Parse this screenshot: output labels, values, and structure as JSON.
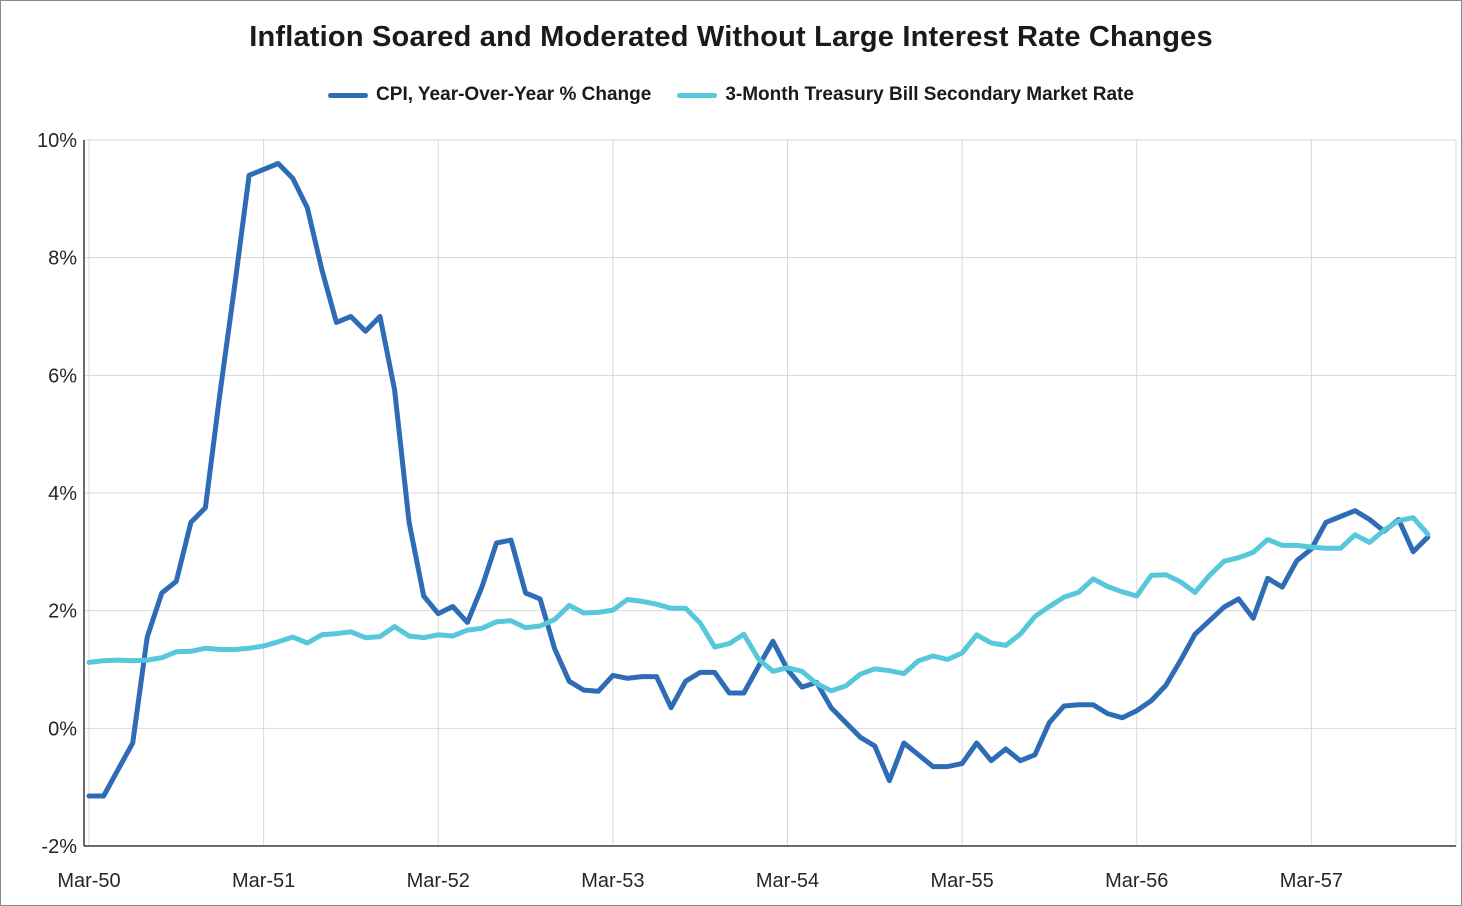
{
  "title": "Inflation Soared and Moderated Without Large Interest Rate Changes",
  "legend": [
    {
      "label": "CPI, Year-Over-Year % Change",
      "color": "#2E6CB5"
    },
    {
      "label": "3-Month Treasury Bill Secondary Market Rate",
      "color": "#57C8DB"
    }
  ],
  "colors": {
    "cpi_line": "#2E6CB5",
    "tbill_line": "#57C8DB",
    "gridline": "#d8d8d8",
    "axis_text": "#262626"
  },
  "chart_data": {
    "type": "line",
    "title": "Inflation Soared and Moderated Without Large Interest Rate Changes",
    "xlabel": "",
    "ylabel": "",
    "ylim": [
      -2,
      10
    ],
    "grid": true,
    "legend_position": "top",
    "y_tick_labels": [
      "10%",
      "8%",
      "6%",
      "4%",
      "2%",
      "0%",
      "-2%"
    ],
    "x_tick_labels": [
      "Mar-50",
      "Mar-51",
      "Mar-52",
      "Mar-53",
      "Mar-54",
      "Mar-55",
      "Mar-56",
      "Mar-57"
    ],
    "months_between_ticks": 12,
    "start_month": "Mar-1950",
    "end_month": "Nov-1957",
    "series": [
      {
        "name": "CPI, Year-Over-Year % Change",
        "color": "#2E6CB5",
        "values": [
          -1.15,
          -1.15,
          -0.7,
          -0.25,
          1.55,
          2.3,
          2.5,
          3.5,
          3.75,
          5.7,
          7.5,
          9.4,
          9.5,
          9.6,
          9.35,
          8.85,
          7.8,
          6.9,
          7.0,
          6.75,
          7.0,
          5.75,
          3.5,
          2.25,
          1.95,
          2.07,
          1.8,
          2.4,
          3.15,
          3.2,
          2.3,
          2.2,
          1.35,
          0.8,
          0.65,
          0.63,
          0.9,
          0.85,
          0.88,
          0.88,
          0.35,
          0.8,
          0.95,
          0.95,
          0.6,
          0.6,
          1.05,
          1.48,
          1.0,
          0.7,
          0.78,
          0.35,
          0.1,
          -0.15,
          -0.3,
          -0.89,
          -0.25,
          -0.45,
          -0.65,
          -0.65,
          -0.6,
          -0.25,
          -0.55,
          -0.35,
          -0.55,
          -0.45,
          0.1,
          0.38,
          0.4,
          0.4,
          0.25,
          0.18,
          0.3,
          0.47,
          0.73,
          1.15,
          1.6,
          1.83,
          2.06,
          2.2,
          1.87,
          2.55,
          2.4,
          2.85,
          3.05,
          3.5,
          3.6,
          3.7,
          3.55,
          3.35,
          3.55,
          3.0,
          3.25
        ]
      },
      {
        "name": "3-Month Treasury Bill Secondary Market Rate",
        "color": "#57C8DB",
        "values": [
          1.12,
          1.15,
          1.16,
          1.15,
          1.16,
          1.2,
          1.3,
          1.31,
          1.36,
          1.34,
          1.34,
          1.36,
          1.4,
          1.47,
          1.55,
          1.45,
          1.59,
          1.61,
          1.64,
          1.54,
          1.56,
          1.73,
          1.57,
          1.54,
          1.59,
          1.57,
          1.67,
          1.7,
          1.81,
          1.83,
          1.71,
          1.74,
          1.85,
          2.09,
          1.96,
          1.97,
          2.01,
          2.19,
          2.16,
          2.11,
          2.04,
          2.04,
          1.79,
          1.38,
          1.44,
          1.6,
          1.18,
          0.97,
          1.03,
          0.97,
          0.76,
          0.64,
          0.72,
          0.92,
          1.01,
          0.98,
          0.93,
          1.15,
          1.23,
          1.17,
          1.28,
          1.59,
          1.45,
          1.41,
          1.6,
          1.9,
          2.07,
          2.23,
          2.31,
          2.54,
          2.41,
          2.32,
          2.25,
          2.6,
          2.61,
          2.49,
          2.31,
          2.6,
          2.84,
          2.9,
          2.99,
          3.21,
          3.11,
          3.11,
          3.08,
          3.06,
          3.06,
          3.29,
          3.16,
          3.37,
          3.53,
          3.58,
          3.3
        ]
      }
    ]
  }
}
